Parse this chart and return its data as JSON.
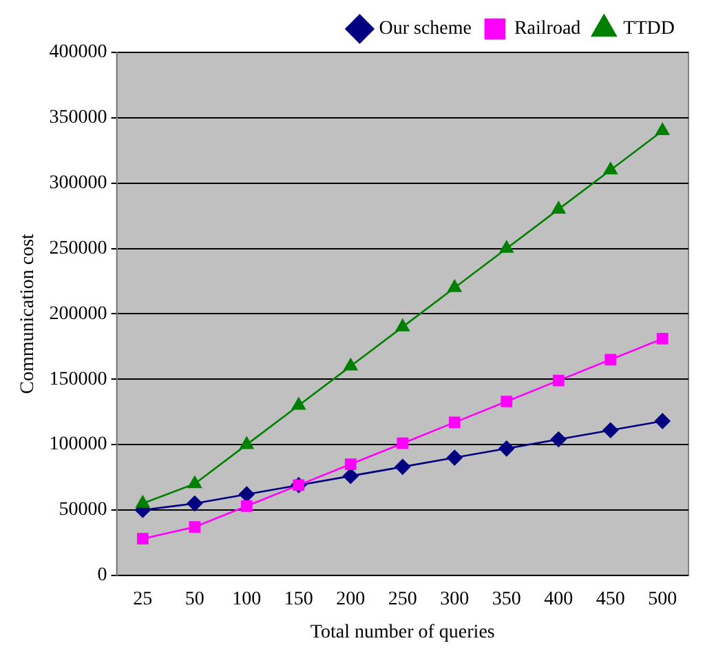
{
  "chart_data": {
    "type": "line",
    "xlabel": "Total number of queries",
    "ylabel": "Communication cost",
    "categories": [
      "25",
      "50",
      "100",
      "150",
      "200",
      "250",
      "300",
      "350",
      "400",
      "450",
      "500"
    ],
    "series": [
      {
        "name": "Our scheme",
        "color": "#000080",
        "marker": "diamond",
        "values": [
          50000,
          55000,
          62000,
          69000,
          76000,
          83000,
          90000,
          97000,
          104000,
          111000,
          118000
        ]
      },
      {
        "name": "Railroad",
        "color": "#ff00ff",
        "marker": "square",
        "values": [
          28000,
          37000,
          53000,
          69000,
          85000,
          101000,
          117000,
          133000,
          149000,
          165000,
          181000
        ]
      },
      {
        "name": "TTDD",
        "color": "#008000",
        "marker": "triangle",
        "values": [
          55000,
          70000,
          100000,
          130000,
          160000,
          190000,
          220000,
          250000,
          280000,
          310000,
          340000
        ]
      }
    ],
    "ylim": [
      0,
      400000
    ],
    "yticks": [
      0,
      50000,
      100000,
      150000,
      200000,
      250000,
      300000,
      350000,
      400000
    ],
    "grid": "y",
    "legend": "top right"
  }
}
